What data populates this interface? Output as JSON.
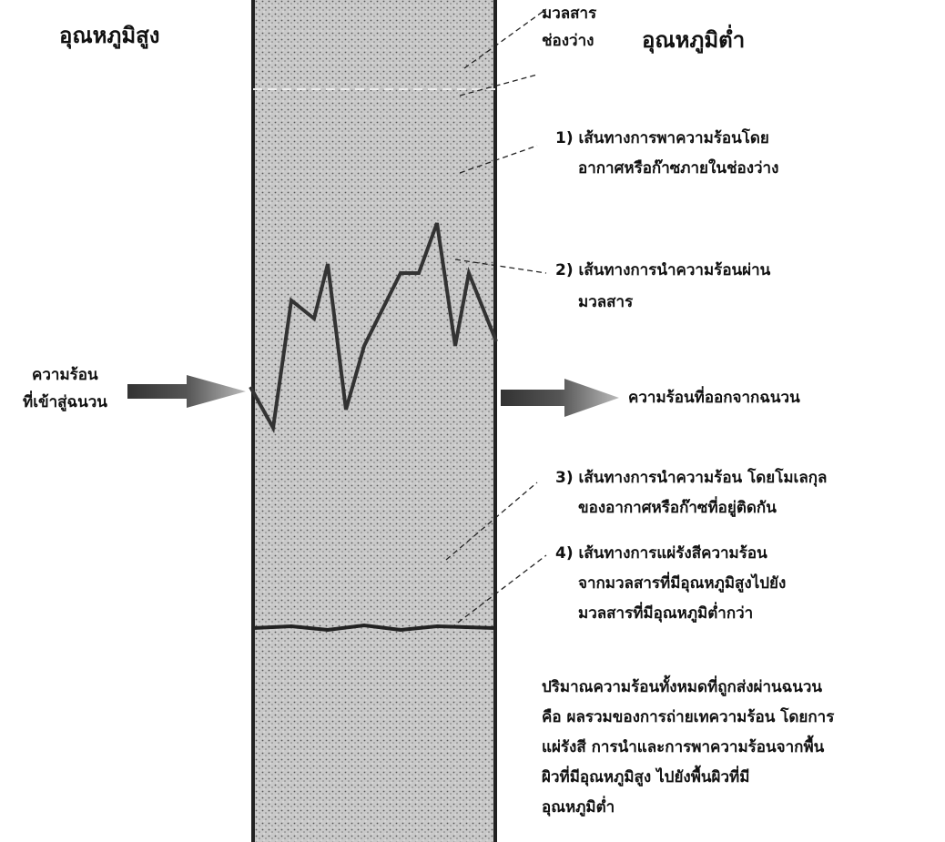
{
  "labels": {
    "hot_side": "อุณหภูมิสูง",
    "cold_side": "อุณหภูมิต่ำ",
    "material": "มวลสาร",
    "void": "ช่องว่าง",
    "path1": [
      "1) เส้นทางการพาความร้อนโดย",
      "อากาศหรือก๊าซภายในช่องว่าง"
    ],
    "path2": [
      "2) เส้นทางการนำความร้อนผ่าน",
      "มวลสาร"
    ],
    "heat_in": [
      "ความร้อน",
      "ที่เข้าสู่ฉนวน"
    ],
    "heat_out": "ความร้อนที่ออกจากฉนวน",
    "path3": [
      "3) เส้นทางการนำความร้อน โดยโมเลกุล",
      "ของอากาศหรือก๊าซที่อยู่ติดกัน"
    ],
    "path4": [
      "4) เส้นทางการแผ่รังสีความร้อน",
      "จากมวลสารที่มีอุณหภูมิสูงไปยัง",
      "มวลสารที่มีอุณหภูมิต่ำกว่า"
    ],
    "summary": [
      "ปริมาณความร้อนทั้งหมดที่ถูกส่งผ่านฉนวน",
      "คือ ผลรวมของการถ่ายเทความร้อน โดยการ",
      "แผ่รังสี การนำและการพาความร้อนจากพื้น",
      "ผิวที่มีอุณหภูมิสูง ไปยังพื้นผิวที่มี",
      "อุณหภูมิต่ำ"
    ]
  }
}
